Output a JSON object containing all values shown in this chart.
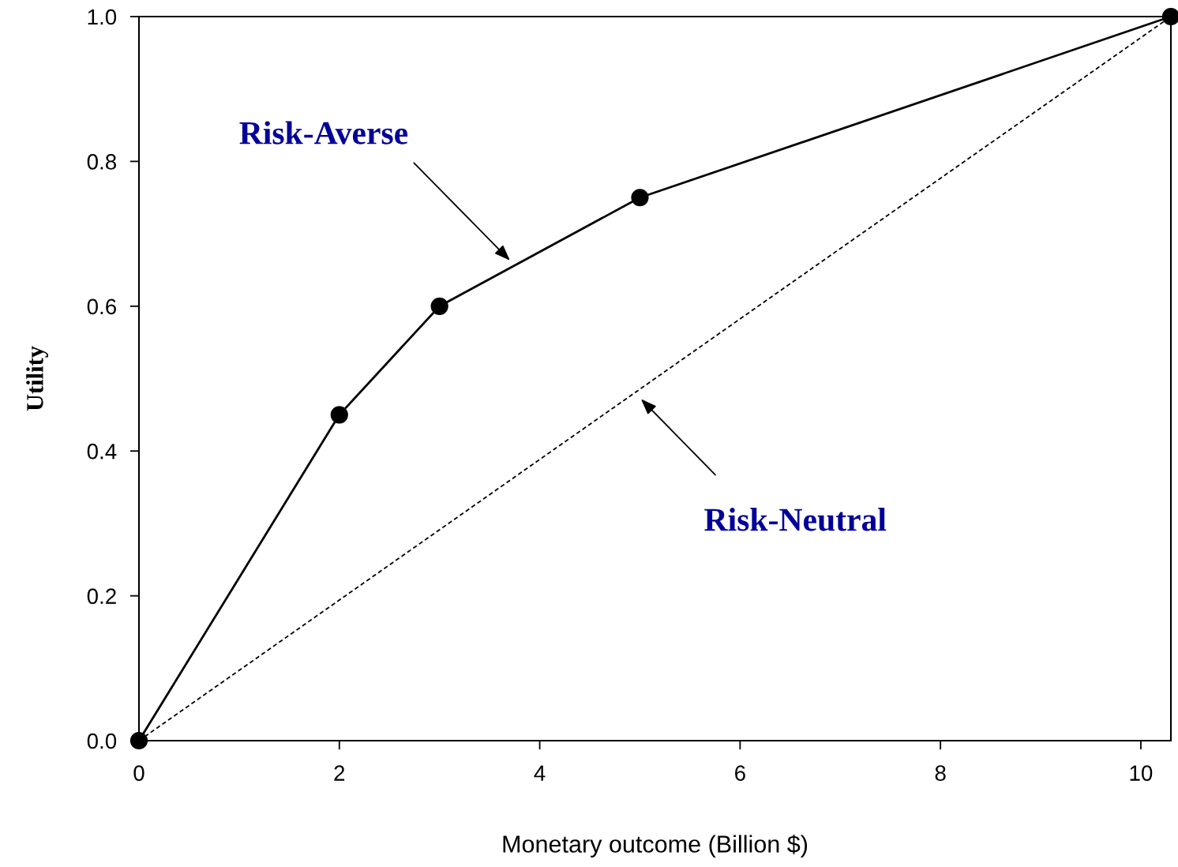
{
  "chart_data": {
    "type": "line",
    "xlabel": "Monetary outcome (Billion $)",
    "ylabel": "Utility",
    "x": [
      0,
      2,
      3,
      5,
      10.3
    ],
    "series": [
      {
        "color": "#000000",
        "values": [
          0,
          0.45,
          0.6,
          0.75,
          1.0
        ],
        "marker": "circle",
        "line_style": "solid"
      },
      {
        "color": "#000000",
        "x": [
          0,
          10.3
        ],
        "values": [
          0,
          1.0
        ],
        "marker": "none",
        "line_style": "dashed"
      }
    ],
    "xlim": [
      0,
      10.3
    ],
    "ylim": [
      0,
      1.0
    ],
    "xticks": [
      0,
      2,
      4,
      6,
      8,
      10
    ],
    "yticks": [
      {
        "value": 0,
        "label": "0.0"
      },
      {
        "value": 0.2,
        "label": "0.2"
      },
      {
        "value": 0.4,
        "label": "0.4"
      },
      {
        "value": 0.6,
        "label": "0.6"
      },
      {
        "value": 0.8,
        "label": "0.8"
      },
      {
        "value": 1.0,
        "label": "1.0"
      }
    ],
    "grid": false,
    "legend": false,
    "annotations": [
      "Risk-Averse",
      "Risk-Neutral"
    ]
  }
}
